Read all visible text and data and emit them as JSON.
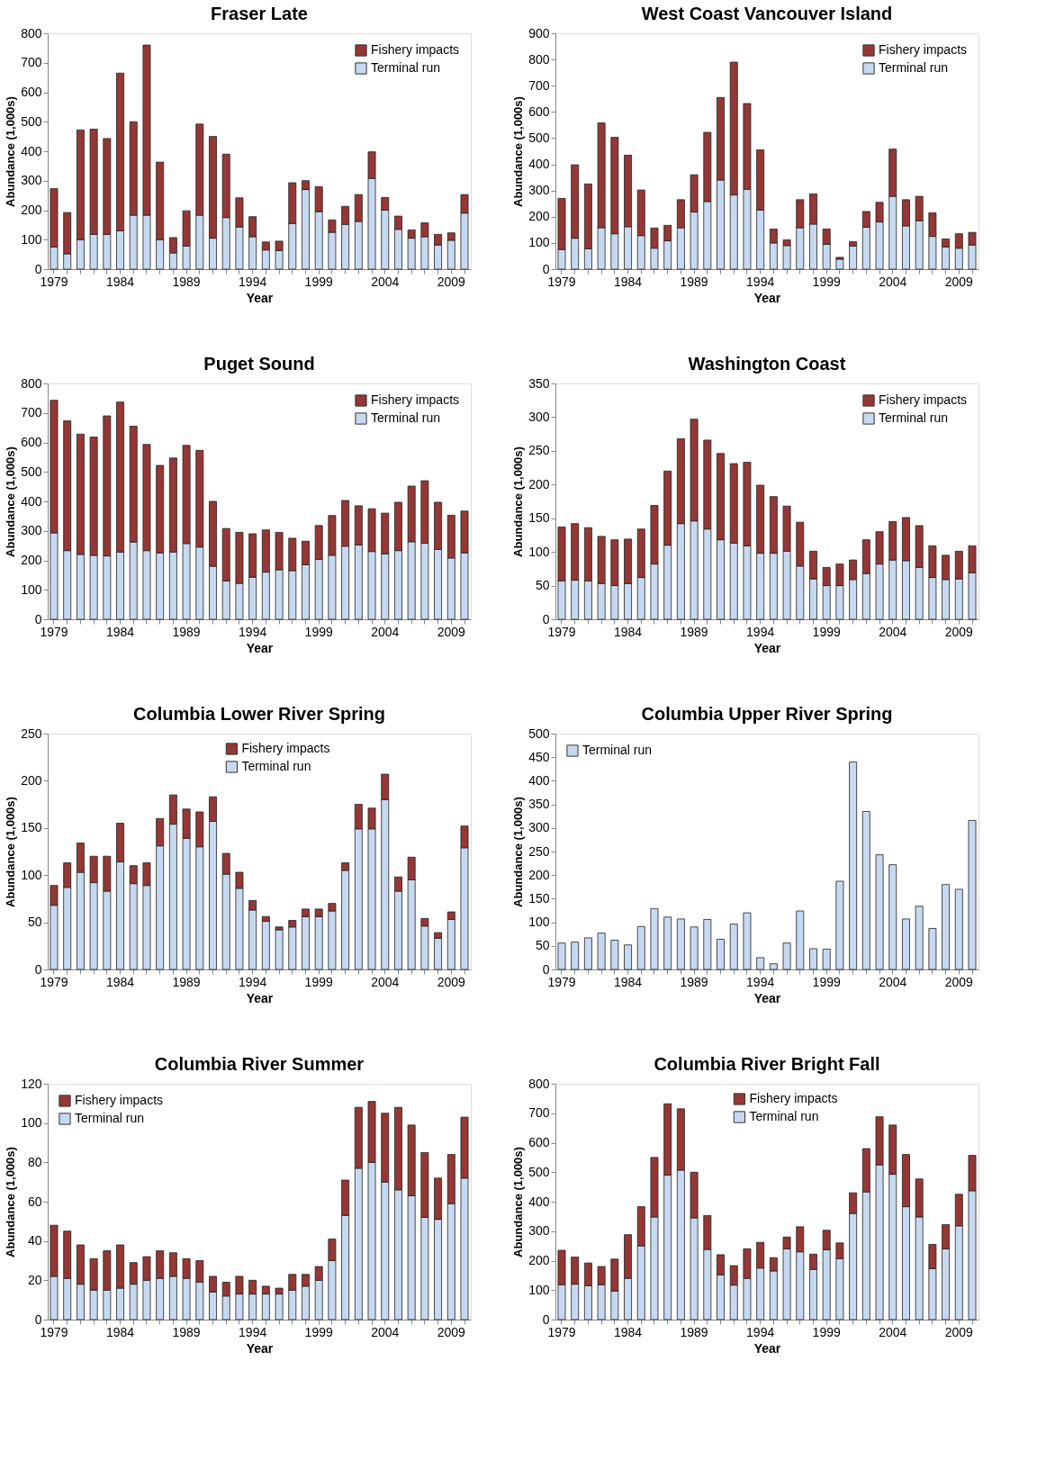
{
  "chart_data": [
    {
      "type": "bar",
      "stacked": true,
      "title": "Fraser Late",
      "xlabel": "Year",
      "ylabel": "Abundance (1,000s)",
      "legend": "top right",
      "ylim": [
        0,
        800
      ],
      "yticks": [
        0,
        100,
        200,
        300,
        400,
        500,
        600,
        700,
        800
      ],
      "categories": [
        "1979",
        null,
        null,
        null,
        null,
        "1984",
        null,
        null,
        null,
        null,
        "1989",
        null,
        null,
        null,
        null,
        "1994",
        null,
        null,
        null,
        null,
        "1999",
        null,
        null,
        null,
        null,
        "2004",
        null,
        null,
        null,
        null,
        "2009",
        null
      ],
      "series": [
        {
          "name": "Terminal run",
          "color": "#c6d9f1",
          "values": [
            75,
            52,
            100,
            118,
            118,
            130,
            183,
            183,
            100,
            55,
            78,
            183,
            105,
            175,
            143,
            110,
            65,
            63,
            155,
            270,
            195,
            125,
            152,
            162,
            308,
            200,
            135,
            105,
            110,
            82,
            98,
            190
          ]
        },
        {
          "name": "Fishery impacts",
          "color": "#953735",
          "values": [
            198,
            140,
            372,
            357,
            325,
            535,
            317,
            577,
            263,
            52,
            120,
            309,
            345,
            215,
            99,
            68,
            27,
            32,
            138,
            30,
            85,
            42,
            61,
            91,
            90,
            43,
            45,
            28,
            47,
            36,
            25,
            63
          ]
        }
      ]
    },
    {
      "type": "bar",
      "stacked": true,
      "title": "West Coast Vancouver Island",
      "xlabel": "Year",
      "ylabel": "Abundance (1,000s)",
      "legend": "top right",
      "ylim": [
        0,
        900
      ],
      "yticks": [
        0,
        100,
        200,
        300,
        400,
        500,
        600,
        700,
        800,
        900
      ],
      "categories": [
        "1979",
        null,
        null,
        null,
        null,
        "1984",
        null,
        null,
        null,
        null,
        "1989",
        null,
        null,
        null,
        null,
        "1994",
        null,
        null,
        null,
        null,
        "1999",
        null,
        null,
        null,
        null,
        "2004",
        null,
        null,
        null,
        null,
        "2009",
        null
      ],
      "series": [
        {
          "name": "Terminal run",
          "color": "#c6d9f1",
          "values": [
            75,
            118,
            78,
            158,
            135,
            162,
            128,
            80,
            108,
            158,
            218,
            258,
            340,
            283,
            305,
            225,
            100,
            90,
            158,
            172,
            95,
            38,
            88,
            160,
            180,
            278,
            165,
            185,
            125,
            85,
            80,
            92
          ]
        },
        {
          "name": "Fishery impacts",
          "color": "#953735",
          "values": [
            195,
            280,
            247,
            400,
            368,
            273,
            174,
            77,
            59,
            107,
            142,
            264,
            315,
            507,
            327,
            230,
            53,
            22,
            107,
            115,
            58,
            7,
            17,
            60,
            75,
            180,
            100,
            93,
            90,
            30,
            55,
            48
          ]
        }
      ]
    },
    {
      "type": "bar",
      "stacked": true,
      "title": "Puget Sound",
      "xlabel": "Year",
      "ylabel": "Abundance (1,000s)",
      "legend": "top right",
      "ylim": [
        0,
        800
      ],
      "yticks": [
        0,
        100,
        200,
        300,
        400,
        500,
        600,
        700,
        800
      ],
      "categories": [
        "1979",
        null,
        null,
        null,
        null,
        "1984",
        null,
        null,
        null,
        null,
        "1989",
        null,
        null,
        null,
        null,
        "1994",
        null,
        null,
        null,
        null,
        "1999",
        null,
        null,
        null,
        null,
        "2004",
        null,
        null,
        null,
        null,
        "2009",
        null
      ],
      "series": [
        {
          "name": "Terminal run",
          "color": "#c6d9f1",
          "values": [
            293,
            233,
            220,
            217,
            215,
            228,
            262,
            233,
            225,
            228,
            257,
            245,
            180,
            130,
            122,
            143,
            160,
            168,
            165,
            185,
            203,
            217,
            248,
            252,
            230,
            222,
            233,
            263,
            258,
            237,
            208,
            225
          ]
        },
        {
          "name": "Fishery impacts",
          "color": "#953735",
          "values": [
            450,
            440,
            408,
            401,
            475,
            509,
            393,
            360,
            297,
            319,
            333,
            328,
            220,
            178,
            173,
            147,
            143,
            127,
            110,
            80,
            115,
            135,
            155,
            133,
            145,
            138,
            164,
            189,
            212,
            160,
            145,
            142
          ]
        }
      ]
    },
    {
      "type": "bar",
      "stacked": true,
      "title": "Washington Coast",
      "xlabel": "Year",
      "ylabel": "Abundance (1,000s)",
      "legend": "top right",
      "ylim": [
        0,
        350
      ],
      "yticks": [
        0,
        50,
        100,
        150,
        200,
        250,
        300,
        350
      ],
      "categories": [
        "1979",
        null,
        null,
        null,
        null,
        "1984",
        null,
        null,
        null,
        null,
        "1989",
        null,
        null,
        null,
        null,
        "1994",
        null,
        null,
        null,
        null,
        "1999",
        null,
        null,
        null,
        null,
        "2004",
        null,
        null,
        null,
        null,
        "2009",
        null
      ],
      "series": [
        {
          "name": "Terminal run",
          "color": "#c6d9f1",
          "values": [
            57,
            58,
            57,
            53,
            50,
            53,
            62,
            82,
            110,
            142,
            146,
            134,
            118,
            113,
            109,
            98,
            98,
            101,
            79,
            60,
            50,
            50,
            59,
            68,
            82,
            88,
            87,
            77,
            62,
            59,
            60,
            69
          ]
        },
        {
          "name": "Fishery impacts",
          "color": "#953735",
          "values": [
            80,
            84,
            79,
            70,
            68,
            66,
            72,
            87,
            110,
            126,
            151,
            132,
            128,
            118,
            124,
            101,
            84,
            67,
            65,
            41,
            27,
            32,
            29,
            50,
            48,
            57,
            64,
            62,
            47,
            36,
            41,
            40
          ]
        }
      ]
    },
    {
      "type": "bar",
      "stacked": true,
      "title": "Columbia Lower River Spring",
      "xlabel": "Year",
      "ylabel": "Abundance (1,000s)",
      "legend": "top",
      "ylim": [
        0,
        250
      ],
      "yticks": [
        0,
        50,
        100,
        150,
        200,
        250
      ],
      "categories": [
        "1979",
        null,
        null,
        null,
        null,
        "1984",
        null,
        null,
        null,
        null,
        "1989",
        null,
        null,
        null,
        null,
        "1994",
        null,
        null,
        null,
        null,
        "1999",
        null,
        null,
        null,
        null,
        "2004",
        null,
        null,
        null,
        null,
        "2009",
        null
      ],
      "series": [
        {
          "name": "Terminal run",
          "color": "#c6d9f1",
          "values": [
            68,
            87,
            103,
            92,
            83,
            114,
            91,
            89,
            131,
            154,
            139,
            130,
            157,
            101,
            86,
            63,
            51,
            42,
            45,
            56,
            56,
            62,
            105,
            149,
            149,
            180,
            83,
            95,
            46,
            33,
            53,
            129
          ]
        },
        {
          "name": "Fishery impacts",
          "color": "#953735",
          "values": [
            21,
            26,
            31,
            28,
            37,
            41,
            19,
            24,
            29,
            31,
            31,
            37,
            26,
            22,
            17,
            10,
            5,
            3,
            7,
            8,
            8,
            8,
            8,
            26,
            22,
            27,
            15,
            24,
            8,
            6,
            8,
            23
          ]
        }
      ]
    },
    {
      "type": "bar",
      "stacked": true,
      "title": "Columbia Upper River Spring",
      "xlabel": "Year",
      "ylabel": "Abundance (1,000s)",
      "legend": "top left",
      "ylim": [
        0,
        500
      ],
      "yticks": [
        0,
        50,
        100,
        150,
        200,
        250,
        300,
        350,
        400,
        450,
        500
      ],
      "categories": [
        "1979",
        null,
        null,
        null,
        null,
        "1984",
        null,
        null,
        null,
        null,
        "1989",
        null,
        null,
        null,
        null,
        "1994",
        null,
        null,
        null,
        null,
        "1999",
        null,
        null,
        null,
        null,
        "2004",
        null,
        null,
        null,
        null,
        "2009",
        null
      ],
      "series": [
        {
          "name": "Terminal run",
          "color": "#c6d9f1",
          "values": [
            56,
            58,
            67,
            77,
            62,
            52,
            91,
            129,
            111,
            107,
            90,
            106,
            64,
            96,
            120,
            25,
            12,
            56,
            124,
            44,
            43,
            187,
            440,
            335,
            243,
            222,
            107,
            134,
            87,
            180,
            170,
            316
          ]
        }
      ]
    },
    {
      "type": "bar",
      "stacked": true,
      "title": "Columbia River Summer",
      "xlabel": "Year",
      "ylabel": "Abundance (1,000s)",
      "legend": "top left",
      "ylim": [
        0,
        120
      ],
      "yticks": [
        0,
        20,
        40,
        60,
        80,
        100,
        120
      ],
      "categories": [
        "1979",
        null,
        null,
        null,
        null,
        "1984",
        null,
        null,
        null,
        null,
        "1989",
        null,
        null,
        null,
        null,
        "1994",
        null,
        null,
        null,
        null,
        "1999",
        null,
        null,
        null,
        null,
        "2004",
        null,
        null,
        null,
        null,
        "2009",
        null
      ],
      "series": [
        {
          "name": "Terminal run",
          "color": "#c6d9f1",
          "values": [
            22,
            21,
            18,
            15,
            15,
            16,
            18,
            20,
            21,
            22,
            21,
            19,
            14,
            12,
            13,
            13,
            13,
            13,
            15,
            17,
            20,
            30,
            53,
            77,
            80,
            70,
            66,
            63,
            52,
            51,
            59,
            72
          ]
        },
        {
          "name": "Fishery impacts",
          "color": "#953735",
          "values": [
            26,
            24,
            20,
            16,
            20,
            22,
            11,
            12,
            14,
            12,
            10,
            11,
            8,
            7,
            9,
            7,
            4,
            3,
            8,
            6,
            7,
            11,
            18,
            31,
            31,
            35,
            42,
            36,
            33,
            21,
            25,
            31
          ]
        }
      ]
    },
    {
      "type": "bar",
      "stacked": true,
      "title": "Columbia River Bright Fall",
      "xlabel": "Year",
      "ylabel": "Abundance (1,000s)",
      "legend": "top",
      "ylim": [
        0,
        800
      ],
      "yticks": [
        0,
        100,
        200,
        300,
        400,
        500,
        600,
        700,
        800
      ],
      "categories": [
        "1979",
        null,
        null,
        null,
        null,
        "1984",
        null,
        null,
        null,
        null,
        "1989",
        null,
        null,
        null,
        null,
        "1994",
        null,
        null,
        null,
        null,
        "1999",
        null,
        null,
        null,
        null,
        "2004",
        null,
        null,
        null,
        null,
        "2009",
        null
      ],
      "series": [
        {
          "name": "Terminal run",
          "color": "#c6d9f1",
          "values": [
            118,
            120,
            115,
            118,
            97,
            140,
            250,
            348,
            490,
            507,
            345,
            238,
            152,
            117,
            140,
            175,
            165,
            240,
            230,
            170,
            237,
            207,
            360,
            433,
            525,
            493,
            383,
            348,
            173,
            240,
            318,
            437
          ]
        },
        {
          "name": "Fishery impacts",
          "color": "#953735",
          "values": [
            117,
            92,
            77,
            62,
            108,
            148,
            133,
            202,
            242,
            208,
            155,
            115,
            68,
            66,
            100,
            87,
            45,
            40,
            85,
            52,
            66,
            53,
            70,
            147,
            163,
            167,
            177,
            129,
            82,
            82,
            107,
            120
          ]
        }
      ]
    }
  ]
}
